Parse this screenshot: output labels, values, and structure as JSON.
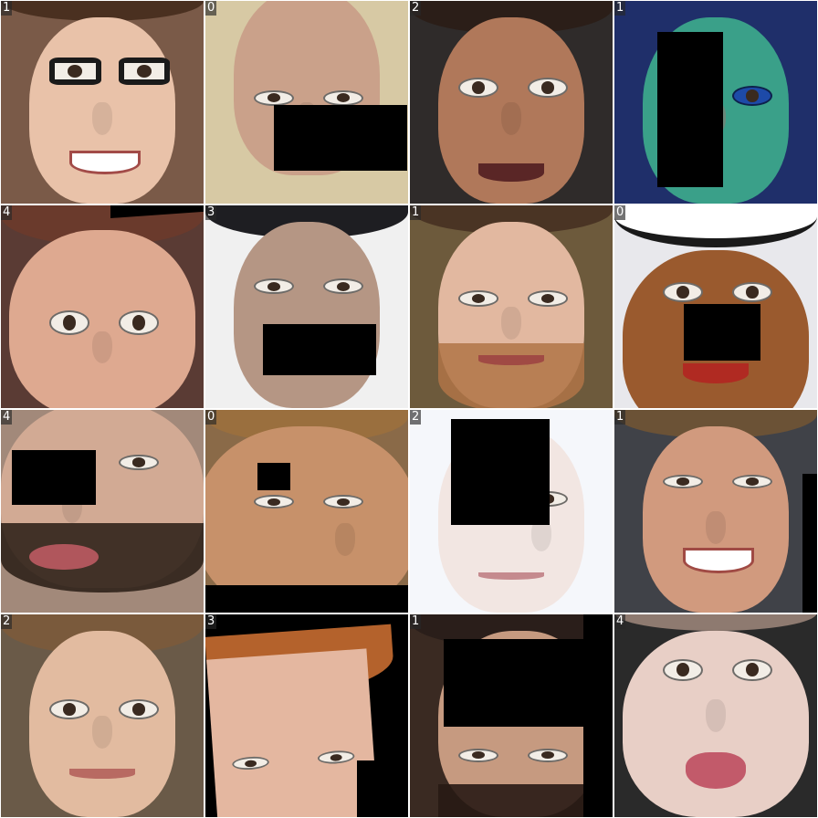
{
  "tiles": [
    {
      "label": "1",
      "skin": "#e9c2a9",
      "bg": "#7a5a48",
      "hair": "#4a3020",
      "features": [
        "glasses",
        "smile"
      ]
    },
    {
      "label": "0",
      "skin": "#caa18a",
      "bg": "#d7c9a4",
      "hair": "#c39b80",
      "features": [
        "frown"
      ]
    },
    {
      "label": "2",
      "skin": "#b0785a",
      "bg": "#2f2b2a",
      "hair": "#2b1e18",
      "features": [
        "open-mouth"
      ]
    },
    {
      "label": "1",
      "skin": "#3aa089",
      "bg": "#1f2f6a",
      "hair": "#2a3d8a",
      "features": [
        "colorized"
      ]
    },
    {
      "label": "4",
      "skin": "#dea990",
      "bg": "#5a3b34",
      "hair": "#6a3a2c",
      "features": [
        "surprised"
      ]
    },
    {
      "label": "3",
      "skin": "#b59684",
      "bg": "#f0f0f0",
      "hair": "#1e1e22",
      "features": [
        "stubble"
      ]
    },
    {
      "label": "1",
      "skin": "#e2b8a0",
      "bg": "#6d5a3c",
      "hair": "#4a3424",
      "features": [
        "beard",
        "smile"
      ]
    },
    {
      "label": "0",
      "skin": "#9a5a2e",
      "bg": "#e8e8ec",
      "hair": "#ffffff",
      "features": [
        "mustache",
        "open-mouth"
      ]
    },
    {
      "label": "4",
      "skin": "#d2aa94",
      "bg": "#a2897a",
      "hair": "#5a4234",
      "features": [
        "beard",
        "open-mouth"
      ]
    },
    {
      "label": "0",
      "skin": "#c7916a",
      "bg": "#8a6a48",
      "hair": "#9a6f3e",
      "features": [
        "frown"
      ]
    },
    {
      "label": "2",
      "skin": "#f2e6e2",
      "bg": "#f5f7fb",
      "hair": "#e8e2de",
      "features": [
        "neutral"
      ]
    },
    {
      "label": "1",
      "skin": "#d19a7e",
      "bg": "#404248",
      "hair": "#6b5236",
      "features": [
        "smile"
      ]
    },
    {
      "label": "2",
      "skin": "#e2bba0",
      "bg": "#6a5a48",
      "hair": "#7a5a3c",
      "features": [
        "pout"
      ]
    },
    {
      "label": "3",
      "skin": "#e4b7a0",
      "bg": "#000000",
      "hair": "#b4622c",
      "features": [
        "eyes-only"
      ]
    },
    {
      "label": "1",
      "skin": "#c69a80",
      "bg": "#3a2a22",
      "hair": "#2a1e1a",
      "features": [
        "beard"
      ]
    },
    {
      "label": "4",
      "skin": "#e8cfc6",
      "bg": "#2a2a2a",
      "hair": "#8e7a70",
      "features": [
        "open-mouth"
      ]
    }
  ]
}
